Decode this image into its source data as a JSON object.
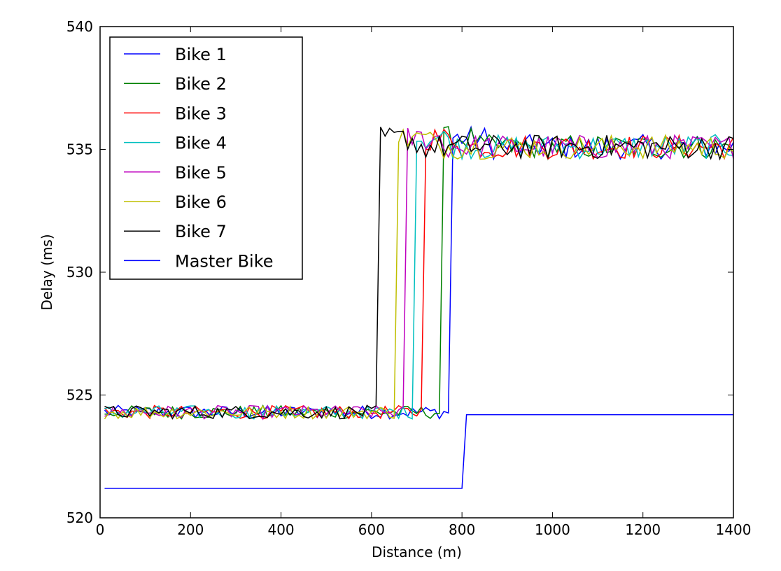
{
  "chart_data": {
    "type": "line",
    "title": "",
    "xlabel": "Distance (m)",
    "ylabel": "Delay (ms)",
    "xlim": [
      0,
      1400
    ],
    "ylim": [
      520,
      540
    ],
    "xticks": [
      0,
      200,
      400,
      600,
      800,
      1000,
      1200,
      1400
    ],
    "yticks": [
      520,
      525,
      530,
      535,
      540
    ],
    "grid": false,
    "legend": "top-left",
    "series": [
      {
        "name": "Bike 1",
        "color": "#0000ff",
        "jump_x": 780,
        "x_start": 10,
        "x_end": 1400,
        "low": 524.3,
        "high": 535.1,
        "x": [
          10,
          200,
          400,
          600,
          770,
          780,
          790,
          900,
          1000,
          1200,
          1400
        ],
        "y": [
          524.3,
          524.3,
          524.4,
          524.3,
          524.1,
          524.4,
          535.2,
          535.0,
          535.1,
          535.0,
          535.2
        ]
      },
      {
        "name": "Bike 2",
        "color": "#008000",
        "jump_x": 760,
        "x_start": 10,
        "x_end": 1400,
        "low": 524.3,
        "high": 535.1,
        "x": [
          10,
          200,
          400,
          600,
          750,
          760,
          770,
          900,
          1000,
          1200,
          1400
        ],
        "y": [
          524.3,
          524.3,
          524.3,
          524.3,
          524.2,
          524.3,
          535.3,
          535.0,
          535.1,
          535.0,
          534.8
        ]
      },
      {
        "name": "Bike 3",
        "color": "#ff0000",
        "jump_x": 720,
        "x_start": 10,
        "x_end": 1400,
        "low": 524.3,
        "high": 535.1,
        "x": [
          10,
          200,
          400,
          600,
          710,
          720,
          730,
          900,
          1000,
          1200,
          1400
        ],
        "y": [
          524.3,
          524.3,
          524.3,
          524.3,
          524.2,
          524.3,
          535.5,
          535.1,
          535.1,
          535.0,
          535.0
        ]
      },
      {
        "name": "Bike 4",
        "color": "#00bfbf",
        "jump_x": 700,
        "x_start": 10,
        "x_end": 1400,
        "low": 524.3,
        "high": 535.1,
        "x": [
          10,
          200,
          400,
          600,
          690,
          700,
          710,
          900,
          1000,
          1200,
          1400
        ],
        "y": [
          524.3,
          524.3,
          524.3,
          524.3,
          524.2,
          524.3,
          535.6,
          535.1,
          535.0,
          535.0,
          535.0
        ]
      },
      {
        "name": "Bike 5",
        "color": "#bf00bf",
        "jump_x": 680,
        "x_start": 10,
        "x_end": 1400,
        "low": 524.3,
        "high": 535.1,
        "x": [
          10,
          200,
          400,
          600,
          670,
          680,
          690,
          900,
          1000,
          1200,
          1400
        ],
        "y": [
          524.3,
          524.3,
          524.3,
          524.3,
          524.2,
          524.3,
          535.7,
          535.1,
          535.0,
          535.0,
          535.1
        ]
      },
      {
        "name": "Bike 6",
        "color": "#bfbf00",
        "jump_x": 660,
        "x_start": 10,
        "x_end": 1400,
        "low": 524.3,
        "high": 535.1,
        "x": [
          10,
          200,
          400,
          600,
          650,
          660,
          670,
          900,
          1000,
          1200,
          1400
        ],
        "y": [
          524.3,
          524.3,
          524.3,
          524.3,
          524.2,
          524.3,
          535.7,
          535.2,
          535.0,
          535.0,
          535.0
        ]
      },
      {
        "name": "Bike 7",
        "color": "#000000",
        "jump_x": 620,
        "x_start": 10,
        "x_end": 1400,
        "low": 524.3,
        "high": 535.1,
        "x": [
          10,
          200,
          400,
          600,
          610,
          620,
          630,
          900,
          1000,
          1200,
          1400
        ],
        "y": [
          524.3,
          524.3,
          524.3,
          524.2,
          524.2,
          524.3,
          535.8,
          535.1,
          535.0,
          535.0,
          535.1
        ]
      },
      {
        "name": "Master Bike",
        "color": "#0000ff",
        "x": [
          10,
          800,
          810,
          1400
        ],
        "y": [
          521.2,
          521.2,
          524.2,
          524.2
        ]
      }
    ]
  }
}
